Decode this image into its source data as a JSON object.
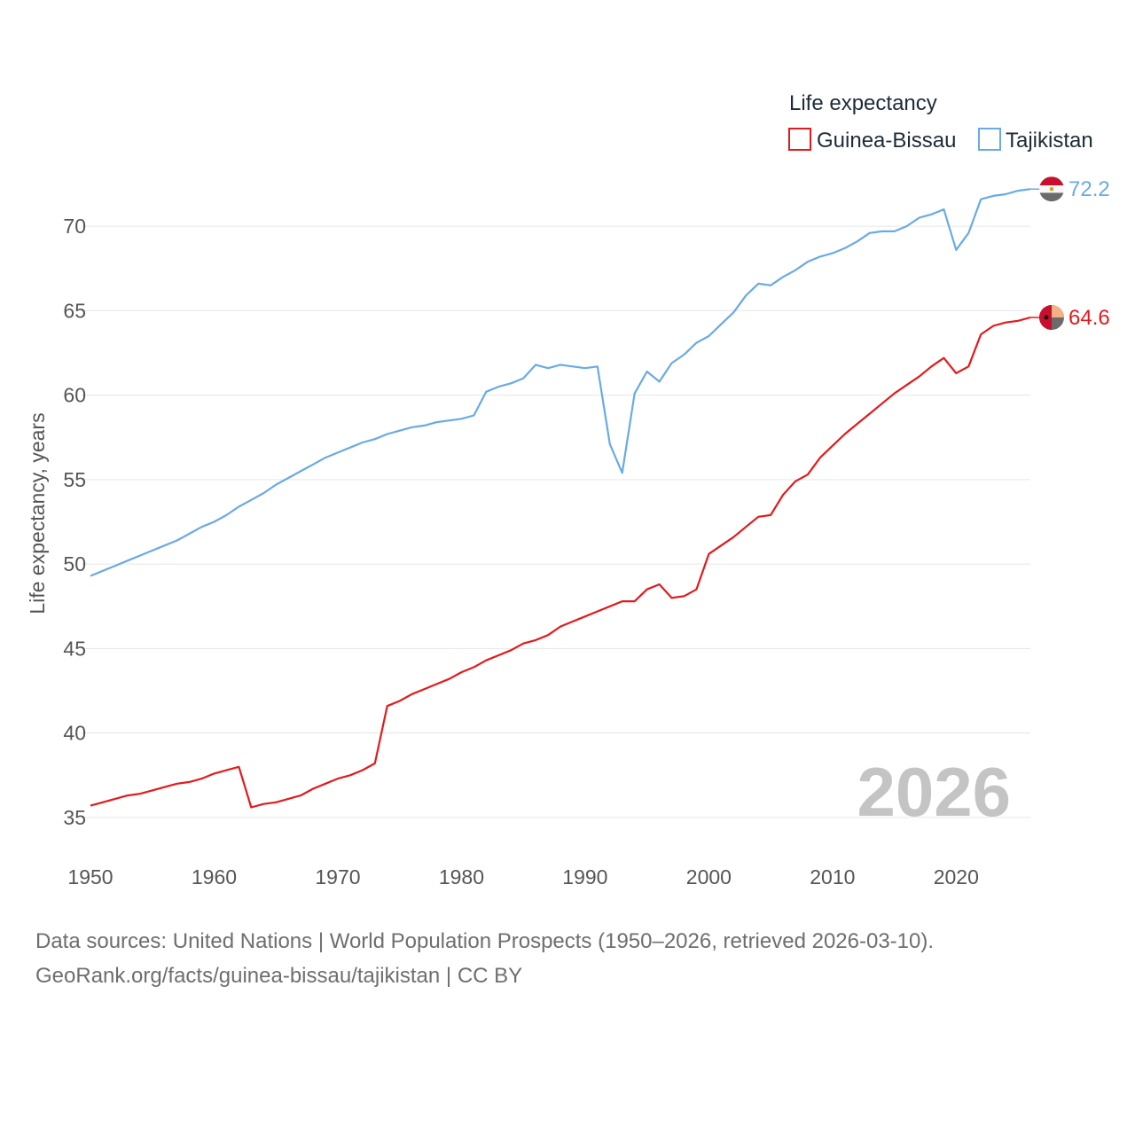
{
  "chart_data": {
    "type": "line",
    "title": "",
    "xlabel": "",
    "ylabel": "Life expectancy, years",
    "xlim": [
      1950,
      2026
    ],
    "ylim": [
      33,
      73
    ],
    "x_ticks": [
      1950,
      1960,
      1970,
      1980,
      1990,
      2000,
      2010,
      2020
    ],
    "y_ticks": [
      35,
      40,
      45,
      50,
      55,
      60,
      65,
      70
    ],
    "grid": true,
    "legend": {
      "title": "Life expectancy",
      "position": "top-right",
      "entries": [
        "Guinea-Bissau",
        "Tajikistan"
      ]
    },
    "watermark_year": "2026",
    "x": [
      1950,
      1951,
      1952,
      1953,
      1954,
      1955,
      1956,
      1957,
      1958,
      1959,
      1960,
      1961,
      1962,
      1963,
      1964,
      1965,
      1966,
      1967,
      1968,
      1969,
      1970,
      1971,
      1972,
      1973,
      1974,
      1975,
      1976,
      1977,
      1978,
      1979,
      1980,
      1981,
      1982,
      1983,
      1984,
      1985,
      1986,
      1987,
      1988,
      1989,
      1990,
      1991,
      1992,
      1993,
      1994,
      1995,
      1996,
      1997,
      1998,
      1999,
      2000,
      2001,
      2002,
      2003,
      2004,
      2005,
      2006,
      2007,
      2008,
      2009,
      2010,
      2011,
      2012,
      2013,
      2014,
      2015,
      2016,
      2017,
      2018,
      2019,
      2020,
      2021,
      2022,
      2023,
      2024,
      2025,
      2026
    ],
    "series": [
      {
        "name": "Guinea-Bissau",
        "color": "#e31a1c",
        "end_label": "64.6",
        "values": [
          35.7,
          35.9,
          36.1,
          36.3,
          36.4,
          36.6,
          36.8,
          37.0,
          37.1,
          37.3,
          37.6,
          37.8,
          38.0,
          35.6,
          35.8,
          35.9,
          36.1,
          36.3,
          36.7,
          37.0,
          37.3,
          37.5,
          37.8,
          38.2,
          41.6,
          41.9,
          42.3,
          42.6,
          42.9,
          43.2,
          43.6,
          43.9,
          44.3,
          44.6,
          44.9,
          45.3,
          45.5,
          45.8,
          46.3,
          46.6,
          46.9,
          47.2,
          47.5,
          47.8,
          47.8,
          48.5,
          48.8,
          48.0,
          48.1,
          48.5,
          50.6,
          51.1,
          51.6,
          52.2,
          52.8,
          52.9,
          54.1,
          54.9,
          55.3,
          56.3,
          57.0,
          57.7,
          58.3,
          58.9,
          59.5,
          60.1,
          60.6,
          61.1,
          61.7,
          62.2,
          61.3,
          61.7,
          63.6,
          64.1,
          64.3,
          64.4,
          64.6
        ]
      },
      {
        "name": "Tajikistan",
        "color": "#6aaae4",
        "end_label": "72.2",
        "values": [
          49.3,
          49.6,
          49.9,
          50.2,
          50.5,
          50.8,
          51.1,
          51.4,
          51.8,
          52.2,
          52.5,
          52.9,
          53.4,
          53.8,
          54.2,
          54.7,
          55.1,
          55.5,
          55.9,
          56.3,
          56.6,
          56.9,
          57.2,
          57.4,
          57.7,
          57.9,
          58.1,
          58.2,
          58.4,
          58.5,
          58.6,
          58.8,
          60.2,
          60.5,
          60.7,
          61.0,
          61.8,
          61.6,
          61.8,
          61.7,
          61.6,
          61.7,
          57.1,
          55.4,
          60.1,
          61.4,
          60.8,
          61.9,
          62.4,
          63.1,
          63.5,
          64.2,
          64.9,
          65.9,
          66.6,
          66.5,
          67.0,
          67.4,
          67.9,
          68.2,
          68.4,
          68.7,
          69.1,
          69.6,
          69.7,
          69.7,
          70.0,
          70.5,
          70.7,
          71.0,
          68.6,
          69.6,
          71.6,
          71.8,
          71.9,
          72.1,
          72.2
        ]
      }
    ]
  },
  "source": {
    "line1": "Data sources: United Nations | World Population Prospects (1950–2026, retrieved 2026-03-10).",
    "line2": "GeoRank.org/facts/guinea-bissau/tajikistan | CC BY"
  }
}
